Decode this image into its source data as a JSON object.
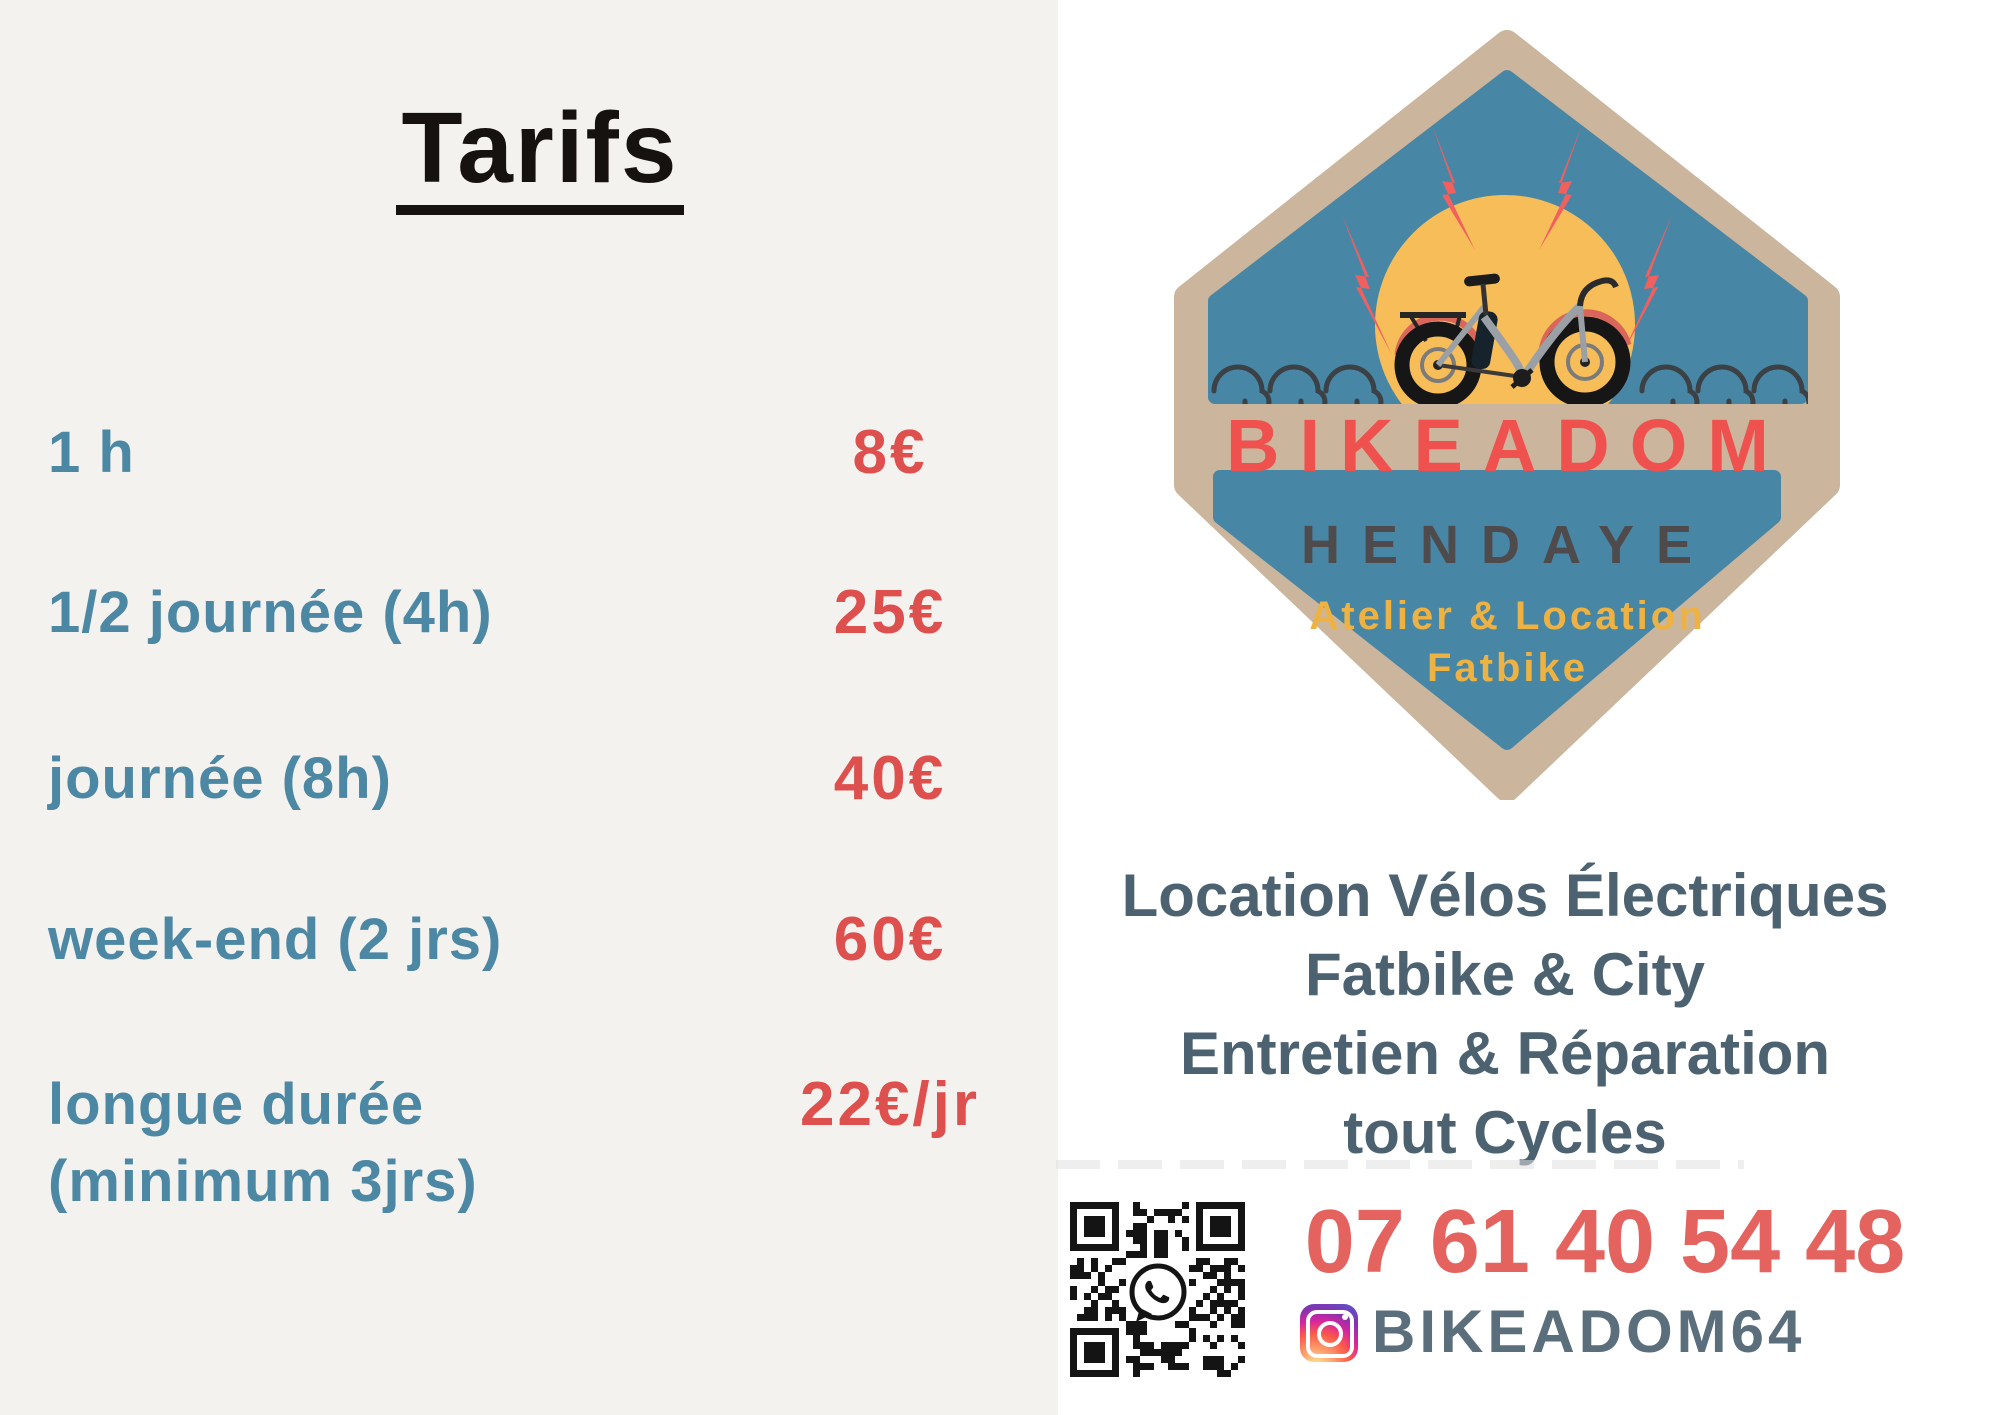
{
  "pricing": {
    "title": "Tarifs",
    "rows": [
      {
        "label": "1 h",
        "price": "8€"
      },
      {
        "label": "1/2 journée (4h)",
        "price": "25€"
      },
      {
        "label": "journée (8h)",
        "price": "40€"
      },
      {
        "label": "week-end (2 jrs)",
        "price": "60€"
      },
      {
        "label": "longue durée",
        "label2": "(minimum 3jrs)",
        "price": "22€/jr"
      }
    ]
  },
  "badge": {
    "brand": "BIKEADOM",
    "city": "HENDAYE",
    "tagline1": "Atelier & Location",
    "tagline2": "Fatbike"
  },
  "services": {
    "line1": "Location Vélos Électriques",
    "line2": "Fatbike & City",
    "line3": "Entretien & Réparation",
    "line4": "tout Cycles"
  },
  "contact": {
    "phone": "07 61 40 54 48",
    "instagram_handle": "BIKEADOM64",
    "icons": [
      "qr-code",
      "whatsapp-icon",
      "instagram-icon"
    ]
  },
  "colors": {
    "label_blue": "#4c87a4",
    "price_red": "#dd504d",
    "badge_tan": "#cbb59c",
    "badge_blue": "#4886a5",
    "sun_yellow": "#f7bd59",
    "bolt_red": "#f15f5f",
    "brand_red": "#ef514e",
    "city_gray": "#4f4b4c",
    "tagline_yellow": "#edb242",
    "services_slate": "#4d6270",
    "phone_red": "#e4635e",
    "instagram_gray": "#5a6e7b",
    "left_panel_bg": "#f3f2ef"
  }
}
